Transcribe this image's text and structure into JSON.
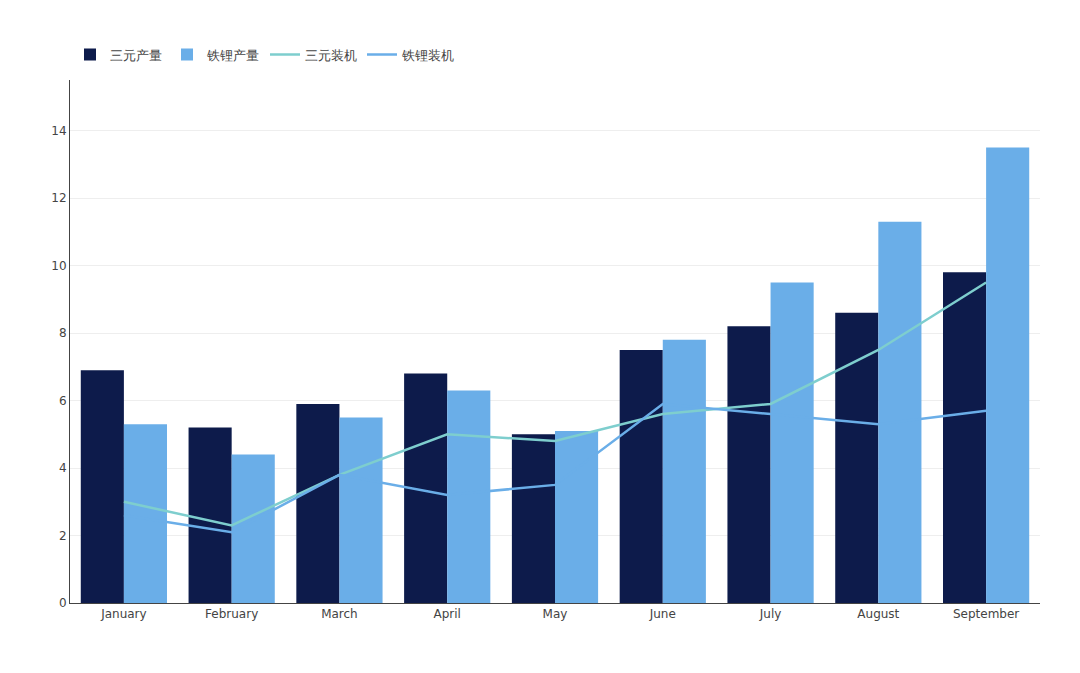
{
  "chart_data": {
    "type": "bar",
    "categories": [
      "January",
      "February",
      "March",
      "April",
      "May",
      "June",
      "July",
      "August",
      "September"
    ],
    "series": [
      {
        "name": "三元产量",
        "type": "bar",
        "color": "#0d1b4b",
        "values": [
          6.9,
          5.2,
          5.9,
          6.8,
          5.0,
          7.5,
          8.2,
          8.6,
          9.8
        ]
      },
      {
        "name": "铁锂产量",
        "type": "bar",
        "color": "#6aaee8",
        "values": [
          5.3,
          4.4,
          5.5,
          6.3,
          5.1,
          7.8,
          9.5,
          11.3,
          13.5
        ]
      },
      {
        "name": "三元装机",
        "type": "line",
        "color": "#7ecece",
        "values": [
          3.0,
          2.3,
          3.8,
          5.0,
          4.8,
          5.6,
          5.9,
          7.5,
          9.5
        ]
      },
      {
        "name": "铁锂装机",
        "type": "line",
        "color": "#6aaee8",
        "values": [
          2.6,
          2.1,
          3.8,
          3.2,
          3.5,
          5.9,
          5.6,
          5.3,
          5.7
        ]
      }
    ],
    "ylim": [
      0,
      15.5
    ],
    "yticks": [
      0,
      2,
      4,
      6,
      8,
      10,
      12,
      14
    ],
    "grid": true,
    "legend": "top left"
  }
}
